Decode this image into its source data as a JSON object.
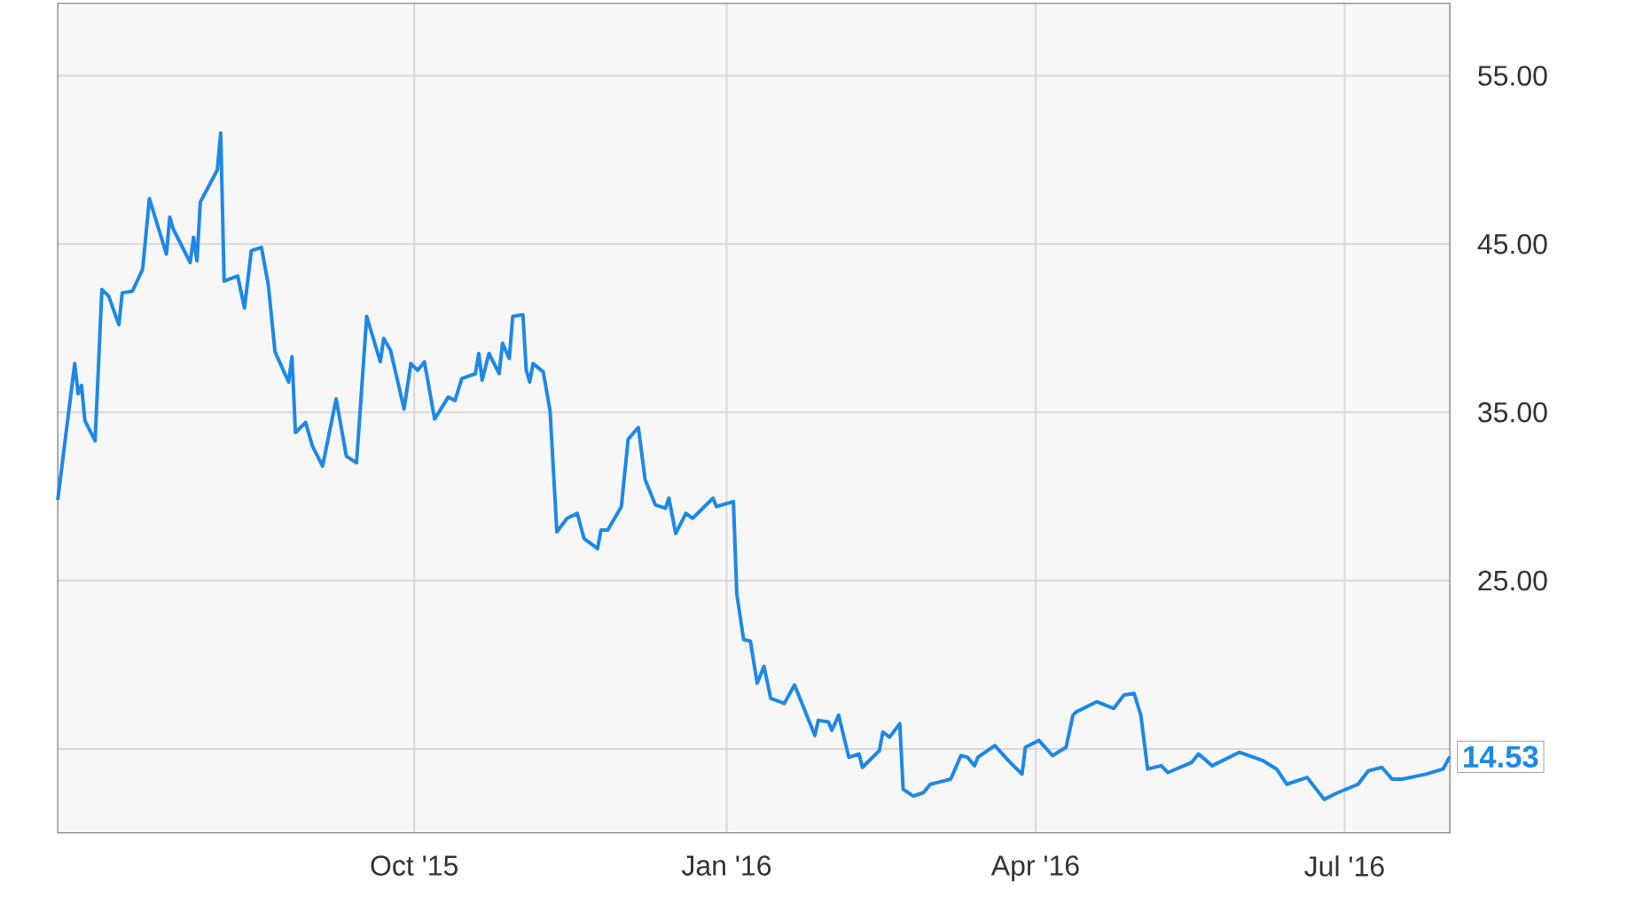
{
  "chart_data": {
    "type": "line",
    "x": [
      "2015-06-18",
      "2015-06-23",
      "2015-06-24",
      "2015-06-25",
      "2015-06-26",
      "2015-06-29",
      "2015-07-01",
      "2015-07-03",
      "2015-07-06",
      "2015-07-07",
      "2015-07-10",
      "2015-07-13",
      "2015-07-15",
      "2015-07-20",
      "2015-07-21",
      "2015-07-22",
      "2015-07-27",
      "2015-07-28",
      "2015-07-29",
      "2015-07-30",
      "2015-08-04",
      "2015-08-05",
      "2015-08-06",
      "2015-08-10",
      "2015-08-12",
      "2015-08-14",
      "2015-08-17",
      "2015-08-19",
      "2015-08-21",
      "2015-08-25",
      "2015-08-26",
      "2015-08-27",
      "2015-08-30",
      "2015-09-01",
      "2015-09-04",
      "2015-09-08",
      "2015-09-11",
      "2015-09-14",
      "2015-09-17",
      "2015-09-21",
      "2015-09-22",
      "2015-09-24",
      "2015-09-28",
      "2015-09-30",
      "2015-10-02",
      "2015-10-04",
      "2015-10-07",
      "2015-10-11",
      "2015-10-13",
      "2015-10-15",
      "2015-10-19",
      "2015-10-20",
      "2015-10-21",
      "2015-10-23",
      "2015-10-26",
      "2015-10-27",
      "2015-10-29",
      "2015-10-30",
      "2015-11-02",
      "2015-11-03",
      "2015-11-04",
      "2015-11-05",
      "2015-11-08",
      "2015-11-10",
      "2015-11-12",
      "2015-11-15",
      "2015-11-18",
      "2015-11-20",
      "2015-11-24",
      "2015-11-25",
      "2015-11-27",
      "2015-12-01",
      "2015-12-03",
      "2015-12-06",
      "2015-12-08",
      "2015-12-11",
      "2015-12-14",
      "2015-12-15",
      "2015-12-17",
      "2015-12-20",
      "2015-12-22",
      "2015-12-28",
      "2015-12-29",
      "2016-01-03",
      "2016-01-04",
      "2016-01-06",
      "2016-01-08",
      "2016-01-10",
      "2016-01-12",
      "2016-01-14",
      "2016-01-18",
      "2016-01-21",
      "2016-01-27",
      "2016-01-28",
      "2016-01-31",
      "2016-02-01",
      "2016-02-03",
      "2016-02-06",
      "2016-02-09",
      "2016-02-10",
      "2016-02-15",
      "2016-02-16",
      "2016-02-18",
      "2016-02-21",
      "2016-02-22",
      "2016-02-25",
      "2016-02-28",
      "2016-03-01",
      "2016-03-03",
      "2016-03-07",
      "2016-03-10",
      "2016-03-12",
      "2016-03-14",
      "2016-03-15",
      "2016-03-20",
      "2016-03-24",
      "2016-03-28",
      "2016-03-29",
      "2016-04-02",
      "2016-04-06",
      "2016-04-10",
      "2016-04-12",
      "2016-04-13",
      "2016-04-19",
      "2016-04-24",
      "2016-04-27",
      "2016-04-30",
      "2016-05-02",
      "2016-05-04",
      "2016-05-08",
      "2016-05-10",
      "2016-05-17",
      "2016-05-19",
      "2016-05-23",
      "2016-05-31",
      "2016-06-07",
      "2016-06-11",
      "2016-06-14",
      "2016-06-20",
      "2016-06-25",
      "2016-06-29",
      "2016-07-05",
      "2016-07-08",
      "2016-07-12",
      "2016-07-15",
      "2016-07-18",
      "2016-07-25",
      "2016-07-30",
      "2016-08-01"
    ],
    "values": [
      29.8,
      37.9,
      36.1,
      36.6,
      34.5,
      33.3,
      42.3,
      41.9,
      40.2,
      42.1,
      42.2,
      43.5,
      47.7,
      44.4,
      46.6,
      45.9,
      43.9,
      45.4,
      44.0,
      47.5,
      49.4,
      51.6,
      42.8,
      43.1,
      41.2,
      44.6,
      44.8,
      42.6,
      38.6,
      36.8,
      38.3,
      33.8,
      34.4,
      33.0,
      31.8,
      35.8,
      32.4,
      32.0,
      40.7,
      38.0,
      39.4,
      38.7,
      35.2,
      37.9,
      37.5,
      38.0,
      34.6,
      35.9,
      35.7,
      37.0,
      37.3,
      38.5,
      36.9,
      38.5,
      37.3,
      39.1,
      38.2,
      40.7,
      40.8,
      37.5,
      36.8,
      37.9,
      37.4,
      35.1,
      27.9,
      28.7,
      29.0,
      27.5,
      26.9,
      28.0,
      28.0,
      29.4,
      33.4,
      34.1,
      31.0,
      29.5,
      29.3,
      29.9,
      27.8,
      29.0,
      28.7,
      29.9,
      29.4,
      29.7,
      24.2,
      21.5,
      21.4,
      18.9,
      19.9,
      18.0,
      17.7,
      18.8,
      15.8,
      16.7,
      16.6,
      16.1,
      17.0,
      14.5,
      14.7,
      13.9,
      14.9,
      16.0,
      15.7,
      16.5,
      12.6,
      12.2,
      12.4,
      12.9,
      13.0,
      13.2,
      14.6,
      14.5,
      14.0,
      14.5,
      15.2,
      14.3,
      13.5,
      15.1,
      15.5,
      14.6,
      15.1,
      17.0,
      17.2,
      17.8,
      17.4,
      18.2,
      18.3,
      17.0,
      13.8,
      14.0,
      13.6,
      14.2,
      14.7,
      14.0,
      14.8,
      14.3,
      13.8,
      12.9,
      13.3,
      12.0,
      12.4,
      12.9,
      13.7,
      13.9,
      13.2,
      13.2,
      13.5,
      13.8,
      14.53
    ],
    "color": "#1e88e5",
    "xlim": [
      "2015-06-18",
      "2016-08-01"
    ],
    "xticks": [
      {
        "value": "2015-10-01",
        "label": "Oct '15"
      },
      {
        "value": "2016-01-01",
        "label": "Jan '16"
      },
      {
        "value": "2016-04-01",
        "label": "Apr '16"
      },
      {
        "value": "2016-07-01",
        "label": "Jul '16"
      }
    ],
    "ylim": [
      10,
      59.3
    ],
    "yticks": [
      {
        "value": 15,
        "label": null
      },
      {
        "value": 25,
        "label": "25.00"
      },
      {
        "value": 35,
        "label": "35.00"
      },
      {
        "value": 45,
        "label": "45.00"
      },
      {
        "value": 55,
        "label": "55.00"
      }
    ],
    "grid": true,
    "annotations": [
      {
        "text": "14.53",
        "x": "2016-08-01",
        "y": 14.53
      }
    ]
  }
}
